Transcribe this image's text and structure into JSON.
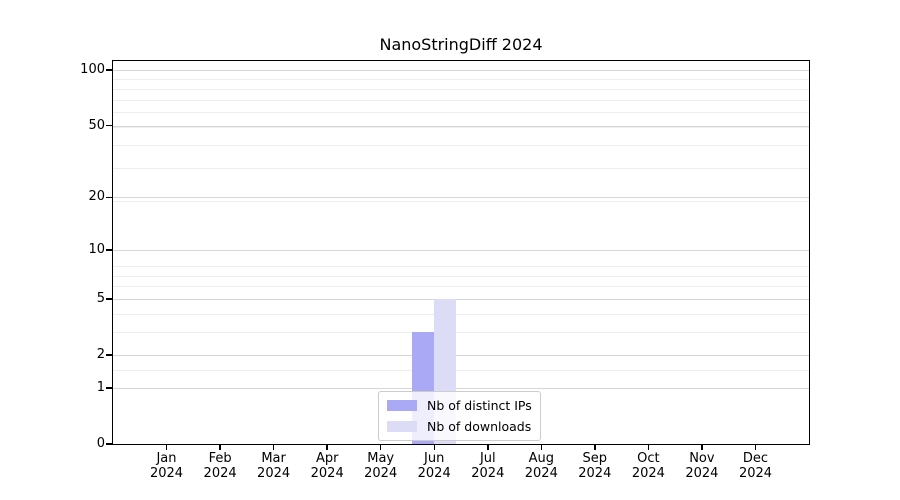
{
  "title": "NanoStringDiff 2024",
  "chart_data": {
    "type": "bar",
    "title": "NanoStringDiff 2024",
    "categories": [
      {
        "month": "Jan",
        "year": "2024"
      },
      {
        "month": "Feb",
        "year": "2024"
      },
      {
        "month": "Mar",
        "year": "2024"
      },
      {
        "month": "Apr",
        "year": "2024"
      },
      {
        "month": "May",
        "year": "2024"
      },
      {
        "month": "Jun",
        "year": "2024"
      },
      {
        "month": "Jul",
        "year": "2024"
      },
      {
        "month": "Aug",
        "year": "2024"
      },
      {
        "month": "Sep",
        "year": "2024"
      },
      {
        "month": "Oct",
        "year": "2024"
      },
      {
        "month": "Nov",
        "year": "2024"
      },
      {
        "month": "Dec",
        "year": "2024"
      }
    ],
    "series": [
      {
        "name": "Nb of distinct IPs",
        "color": "#a9a9f5",
        "values": [
          0,
          0,
          0,
          0,
          0,
          3,
          0,
          0,
          0,
          0,
          0,
          0
        ]
      },
      {
        "name": "Nb of downloads",
        "color": "#dcdcf7",
        "values": [
          0,
          0,
          0,
          0,
          0,
          5,
          0,
          0,
          0,
          0,
          0,
          0
        ]
      }
    ],
    "yscale": "log1p",
    "ylim": [
      0,
      112
    ],
    "yticks": [
      0,
      1,
      2,
      5,
      10,
      20,
      50,
      100
    ],
    "ytick_labels": [
      "0",
      "1",
      "2",
      "5",
      "10",
      "20",
      "50",
      "100"
    ],
    "minor_yticks": [
      1.5,
      3,
      4,
      6,
      7,
      8,
      19,
      29,
      39,
      49,
      59,
      69,
      79,
      89
    ],
    "grid": "horizontal",
    "legend_position": "lower-center-inside"
  },
  "colors": {
    "background": "#ffffff",
    "major_grid": "#d6d6d6",
    "minor_grid": "#eeeeee",
    "axis": "#000000",
    "legend_border": "#cccccc",
    "legend_bg": "rgba(255,255,255,0.8)"
  }
}
